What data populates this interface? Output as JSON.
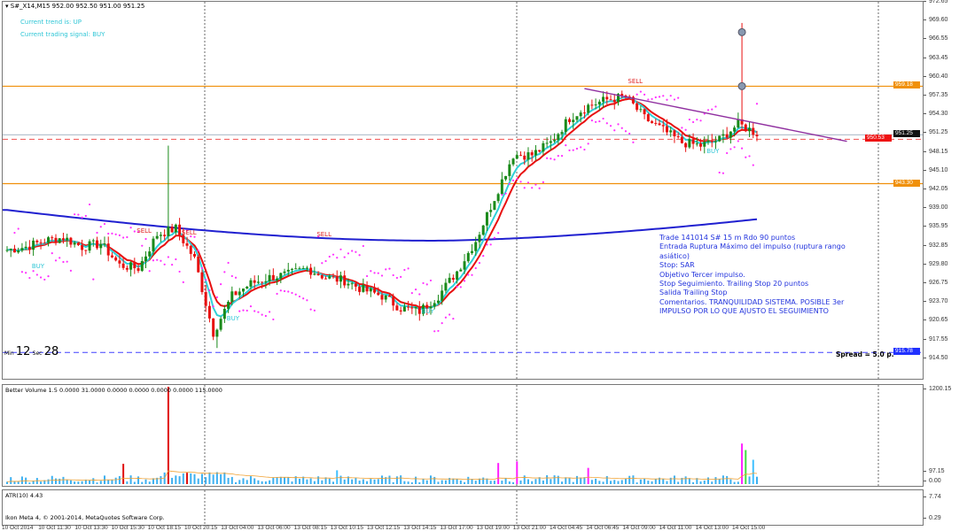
{
  "header": {
    "symbol_line": "S#_X14,M15  952.00 952.50 951.00 951.25",
    "trend": "Current trend is: UP",
    "signal": "Current trading signal: BUY"
  },
  "annotation": [
    "Trade 141014 S# 15 m Rdo 90 puntos",
    "Entrada Ruptura Máximo del impulso (ruptura rango asiático)",
    "Stop: SAR",
    "Objetivo Tercer impulso.",
    "Stop Seguimiento. Trailing Stop 20 puntos",
    "Salida  Trailing Stop",
    "Comentarios. TRANQUILIDAD SISTEMA. POSIBLE 3er IMPULSO POR LO QUE AJUSTO EL SEGUIMIENTO"
  ],
  "signals": [
    {
      "text": "BUY",
      "color": "#2fc6d6",
      "idx": 8,
      "price": 929.8
    },
    {
      "text": "SELL",
      "color": "#e02020",
      "idx": 36,
      "price": 935.6
    },
    {
      "text": "SELL",
      "color": "#e02020",
      "idx": 48,
      "price": 935.3
    },
    {
      "text": "BUY",
      "color": "#2fc6d6",
      "idx": 60,
      "price": 921.3
    },
    {
      "text": "SELL",
      "color": "#e02020",
      "idx": 84,
      "price": 935.0
    },
    {
      "text": "BUY",
      "color": "#2fc6d6",
      "idx": 112,
      "price": 922.4
    },
    {
      "text": "SELL",
      "color": "#e02020",
      "idx": 167,
      "price": 960.0
    },
    {
      "text": "BUY",
      "color": "#2fc6d6",
      "idx": 188,
      "price": 948.5
    }
  ],
  "timer": {
    "min_label": "Min",
    "min": "12",
    "sec_label": "Sec",
    "sec": "28"
  },
  "spread": "Spread = 5.0 p.",
  "price_axis": [
    "972.65",
    "969.60",
    "966.55",
    "963.45",
    "960.40",
    "957.35",
    "954.30",
    "951.25",
    "948.15",
    "945.10",
    "942.05",
    "939.00",
    "935.95",
    "932.85",
    "929.80",
    "926.75",
    "923.70",
    "920.65",
    "917.55",
    "914.50"
  ],
  "levels": [
    {
      "name": "resistance",
      "price": 959.18,
      "label": "959.18",
      "color": "#f0900a",
      "style": "solid"
    },
    {
      "name": "bid",
      "price": 951.25,
      "label": "951.25",
      "color": "#b8c4d0",
      "style": "solid",
      "tag_color": "#111"
    },
    {
      "name": "ask",
      "price": 950.53,
      "label": "950.53",
      "color": "#f05050",
      "style": "dashed",
      "tag_color": "#ee1111"
    },
    {
      "name": "support",
      "price": 943.3,
      "label": "943.30",
      "color": "#f0900a",
      "style": "solid"
    },
    {
      "name": "low",
      "price": 915.78,
      "label": "915.78",
      "color": "#4040ff",
      "style": "dashed",
      "tag_color": "#2030ff"
    }
  ],
  "trendline": {
    "from": {
      "idx": 154,
      "price": 958.8
    },
    "to": {
      "idx": 224,
      "price": 950.2
    },
    "color": "#9030a0"
  },
  "chart_data": {
    "type": "candlestick",
    "symbol": "S#_X14",
    "timeframe": "M15",
    "closes_sampled_every_5_bars": [
      932.5,
      933,
      934,
      934.5,
      933,
      933.5,
      930,
      929.5,
      935,
      936,
      931,
      919,
      925,
      927,
      928,
      928.5,
      929.5,
      928,
      927.5,
      926,
      925,
      923,
      922.5,
      925,
      929,
      934,
      941,
      948,
      948,
      950,
      954,
      956,
      957,
      957.5,
      954,
      952,
      950,
      949.5,
      950.5,
      953,
      951.5
    ],
    "wick_extremes": [
      {
        "idx": 43,
        "high": 949.5
      },
      {
        "idx": 56,
        "low": 916.5
      },
      {
        "idx": 196,
        "high": 969.5
      }
    ],
    "ma200": {
      "start": 939.0,
      "min": 934.0,
      "end": 937.5,
      "color": "#2020d0"
    },
    "fast_ma_color": "#e81010",
    "slow_ma_color": "#30d0d8",
    "sar_color": "#ff30ff",
    "ylim": [
      914.5,
      972.65
    ]
  },
  "volume": {
    "label": "Better Volume 1.5 0.0000 31.0000 0.0000 0.0000 0.0000 0.0000 115.0000",
    "axis_top": "1200.15",
    "axis_mid": "97.15",
    "axis_bottom": "0.00",
    "max": 1200,
    "spikes": [
      {
        "idx": 31,
        "value": 250,
        "color": "#e01010"
      },
      {
        "idx": 43,
        "value": 1200,
        "color": "#e01010"
      },
      {
        "idx": 48,
        "value": 140,
        "color": "#e01010"
      },
      {
        "idx": 88,
        "value": 170,
        "color": "#40c0ff"
      },
      {
        "idx": 131,
        "value": 260,
        "color": "#ff20ff"
      },
      {
        "idx": 136,
        "value": 280,
        "color": "#ff20ff"
      },
      {
        "idx": 155,
        "value": 200,
        "color": "#ff20ff"
      },
      {
        "idx": 196,
        "value": 500,
        "color": "#ff20ff"
      },
      {
        "idx": 197,
        "value": 420,
        "color": "#40e040"
      },
      {
        "idx": 199,
        "value": 300,
        "color": "#40c0ff"
      }
    ]
  },
  "atr": {
    "label": "ATR(10) 4.43",
    "axis_top": "7.74",
    "axis_bottom": "0.29",
    "copyright": "Ikon Meta 4, © 2001-2014, MetaQuotes Software Corp."
  },
  "time_axis": [
    "10 Oct 2014",
    "10 Oct 11:30",
    "10 Oct 13:30",
    "10 Oct 15:30",
    "10 Oct 18:15",
    "10 Oct 20:15",
    "13 Oct 04:00",
    "13 Oct 06:00",
    "13 Oct 08:15",
    "13 Oct 10:15",
    "13 Oct 12:15",
    "13 Oct 14:15",
    "13 Oct 17:00",
    "13 Oct 19:00",
    "13 Oct 21:00",
    "14 Oct 04:45",
    "14 Oct 06:45",
    "14 Oct 09:00",
    "14 Oct 11:00",
    "14 Oct 13:00",
    "14 Oct 15:00"
  ]
}
